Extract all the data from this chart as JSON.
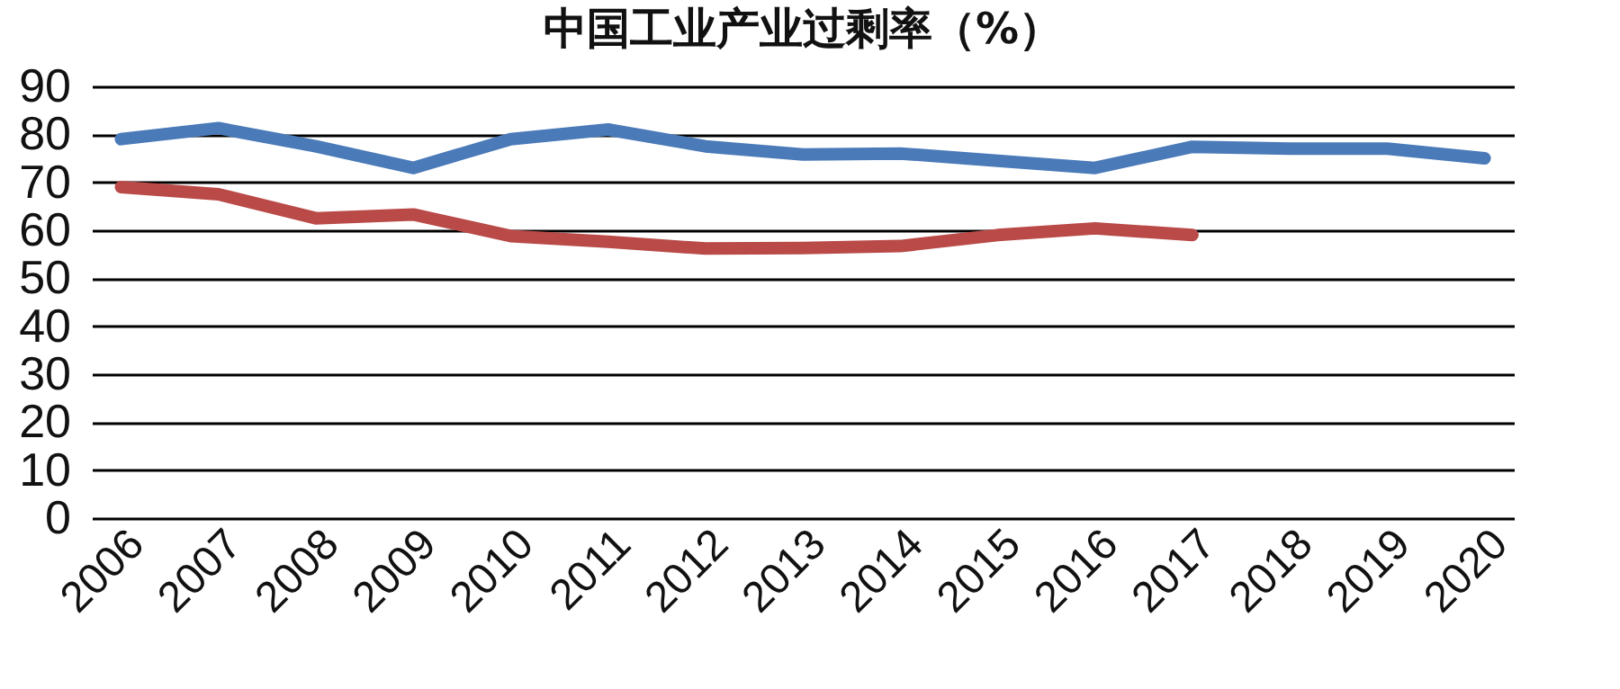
{
  "chart_data": {
    "type": "line",
    "title": "中国工业产业过剩率（%）",
    "categories": [
      "2006",
      "2007",
      "2008",
      "2009",
      "2010",
      "2011",
      "2012",
      "2013",
      "2014",
      "2015",
      "2016",
      "2017",
      "2018",
      "2019",
      "2020"
    ],
    "series": [
      {
        "color": "#4a7ab8",
        "values": [
          79,
          81.3,
          77.5,
          73,
          79,
          81,
          77.5,
          75.8,
          76,
          74.5,
          73,
          77.4,
          77,
          77,
          75
        ]
      },
      {
        "color": "#b94a48",
        "values": [
          69,
          67.5,
          62.5,
          63.3,
          58.8,
          57.6,
          56.2,
          56.3,
          56.7,
          59,
          60.4,
          59,
          null,
          null,
          null
        ]
      }
    ],
    "ylim": [
      0,
      90
    ],
    "yticks": [
      0,
      10,
      20,
      30,
      40,
      50,
      60,
      70,
      80,
      90
    ],
    "grid": "y",
    "legend": false,
    "marker": "none",
    "line_style": "solid"
  }
}
